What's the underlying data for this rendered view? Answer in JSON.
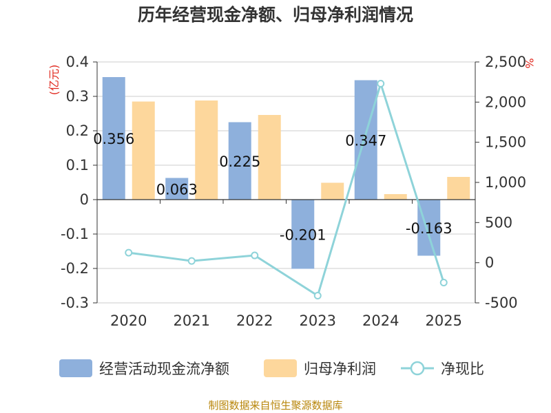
{
  "colors": {
    "cash_flow": "#8eb0dc",
    "net_profit": "#fdd79c",
    "ratio_line": "#8ed3d9",
    "grid": "#cccccc",
    "axis": "#333333",
    "unit": "#e0281e",
    "footer": "#b8860b"
  },
  "footer": "制图数据来自恒生聚源数据库",
  "chart_data": {
    "type": "bar",
    "title": "历年经营现金净额、归母净利润情况",
    "categories": [
      "2020",
      "2021",
      "2022",
      "2023",
      "2024",
      "2025"
    ],
    "series": [
      {
        "name": "经营活动现金流净额",
        "type": "bar",
        "axis": "left",
        "values": [
          0.356,
          0.063,
          0.225,
          -0.201,
          0.347,
          -0.163
        ],
        "labels": [
          "0.356",
          "0.063",
          "0.225",
          "-0.201",
          "0.347",
          "-0.163"
        ]
      },
      {
        "name": "归母净利润",
        "type": "bar",
        "axis": "left",
        "values": [
          0.285,
          0.288,
          0.246,
          0.049,
          0.016,
          0.066
        ]
      },
      {
        "name": "净现比",
        "type": "line",
        "axis": "right",
        "values": [
          125,
          22,
          91,
          -410,
          2230,
          -247
        ]
      }
    ],
    "left_axis": {
      "unit": "(亿元)",
      "min": -0.3,
      "max": 0.4,
      "ticks": [
        0.4,
        0.3,
        0.2,
        0.1,
        0,
        -0.1,
        -0.2,
        -0.3
      ],
      "tick_labels": [
        "0.4",
        "0.3",
        "0.2",
        "0.1",
        "0",
        "-0.1",
        "-0.2",
        "-0.3"
      ]
    },
    "right_axis": {
      "unit": "%",
      "min": -500,
      "max": 2500,
      "ticks": [
        2500,
        2000,
        1500,
        1000,
        500,
        0,
        -500
      ],
      "tick_labels": [
        "2,500",
        "2,000",
        "1,500",
        "1,000",
        "500",
        "0",
        "-500"
      ]
    },
    "grid": true,
    "legend_position": "bottom"
  }
}
